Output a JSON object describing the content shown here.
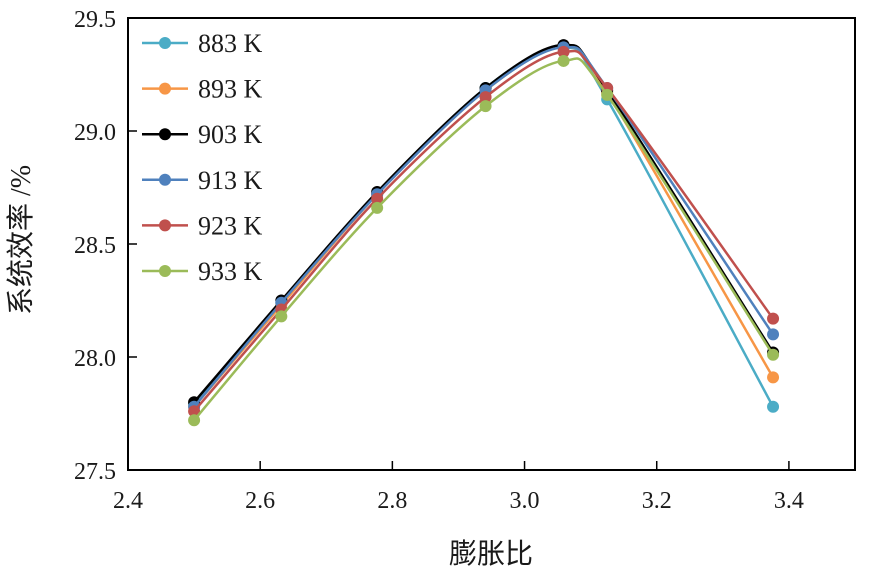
{
  "chart_data": {
    "type": "line",
    "xlabel": "膨胀比",
    "ylabel": "系统效率 /%",
    "xlim": [
      2.4,
      3.5
    ],
    "ylim": [
      27.5,
      29.5
    ],
    "xticks": [
      "2.4",
      "2.6",
      "2.8",
      "3.0",
      "3.2",
      "3.4"
    ],
    "yticks": [
      "27.5",
      "28.0",
      "28.5",
      "29.0",
      "29.5"
    ],
    "x": [
      2.5,
      2.632,
      2.777,
      2.941,
      3.059,
      3.125,
      3.376
    ],
    "grid": false,
    "legend": "top-left",
    "series": [
      {
        "name": "883 K",
        "color": "#4bacc6",
        "values": [
          27.79,
          28.24,
          28.72,
          29.19,
          29.37,
          29.14,
          27.78
        ]
      },
      {
        "name": "893 K",
        "color": "#f79646",
        "values": [
          27.78,
          28.23,
          28.72,
          29.18,
          29.37,
          29.17,
          27.91
        ]
      },
      {
        "name": "903 K",
        "color": "#000000",
        "values": [
          27.8,
          28.25,
          28.73,
          29.19,
          29.38,
          29.18,
          28.02
        ]
      },
      {
        "name": "913 K",
        "color": "#4f81bd",
        "values": [
          27.78,
          28.24,
          28.72,
          29.18,
          29.37,
          29.19,
          28.1
        ]
      },
      {
        "name": "923 K",
        "color": "#c0504d",
        "values": [
          27.76,
          28.21,
          28.7,
          29.15,
          29.35,
          29.19,
          28.17
        ]
      },
      {
        "name": "933 K",
        "color": "#9bbb59",
        "values": [
          27.72,
          28.18,
          28.66,
          29.11,
          29.31,
          29.16,
          28.01
        ]
      }
    ]
  }
}
